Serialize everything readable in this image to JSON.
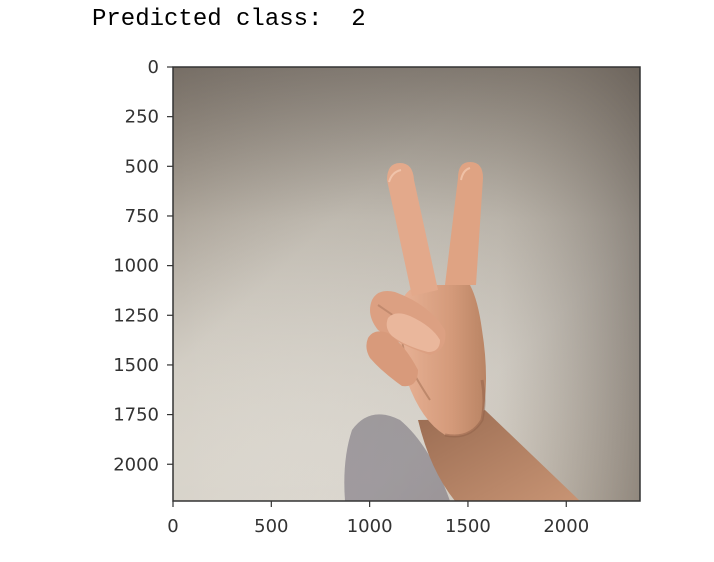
{
  "output": {
    "label": "Predicted class:",
    "value": "2"
  },
  "image_plot": {
    "x_ticks": [
      "0",
      "500",
      "1000",
      "1500",
      "2000"
    ],
    "y_ticks": [
      "0",
      "250",
      "500",
      "750",
      "1000",
      "1250",
      "1500",
      "1750",
      "2000"
    ],
    "x_tick_values": [
      0,
      500,
      1000,
      1500,
      2000
    ],
    "y_tick_values": [
      0,
      250,
      500,
      750,
      1000,
      1250,
      1500,
      1750,
      2000
    ],
    "x_range": [
      0,
      2375
    ],
    "y_range": [
      0,
      2185
    ],
    "image_subject": "hand-showing-two-fingers"
  },
  "colors": {
    "axes": "#333333",
    "text": "#000000"
  }
}
